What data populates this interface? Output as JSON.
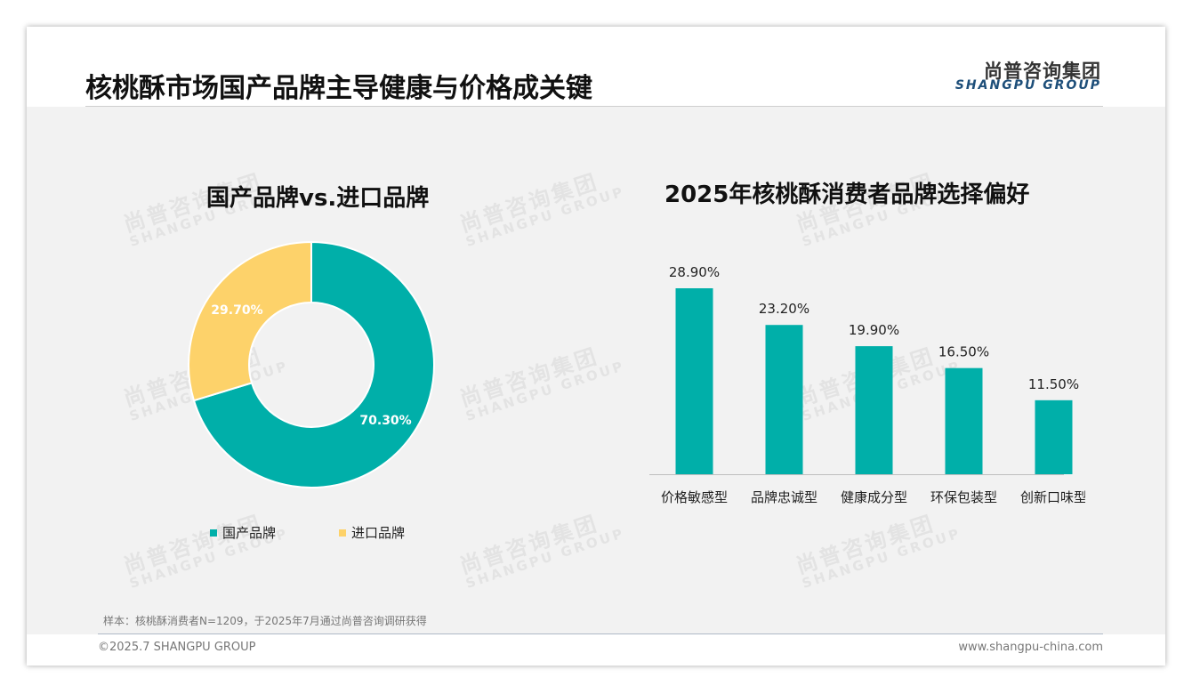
{
  "header": {
    "title": "核桃酥市场国产品牌主导健康与价格成关键",
    "logo_cn": "尚普咨询集团",
    "logo_en": "SHANGPU GROUP"
  },
  "watermark": {
    "cn": "尚普咨询集团",
    "en": "SHANGPU GROUP"
  },
  "chart_data": [
    {
      "type": "pie",
      "title": "国产品牌vs.进口品牌",
      "categories": [
        "国产品牌",
        "进口品牌"
      ],
      "values": [
        70.3,
        29.7
      ],
      "labels": [
        "70.30%",
        "29.70%"
      ],
      "donut": true,
      "legend_position": "bottom",
      "colors": [
        "#00afa9",
        "#fdd26a"
      ]
    },
    {
      "type": "bar",
      "title": "2025年核桃酥消费者品牌选择偏好",
      "categories": [
        "价格敏感型",
        "品牌忠诚型",
        "健康成分型",
        "环保包装型",
        "创新口味型"
      ],
      "values": [
        28.9,
        23.2,
        19.9,
        16.5,
        11.5
      ],
      "labels": [
        "28.90%",
        "23.20%",
        "19.90%",
        "16.50%",
        "11.50%"
      ],
      "grid": false,
      "color": "#00afa9"
    }
  ],
  "footer": {
    "note": "样本：核桃酥消费者N=1209，于2025年7月通过尚普咨询调研获得",
    "copyright": "©2025.7 SHANGPU GROUP",
    "url": "www.shangpu-china.com"
  }
}
